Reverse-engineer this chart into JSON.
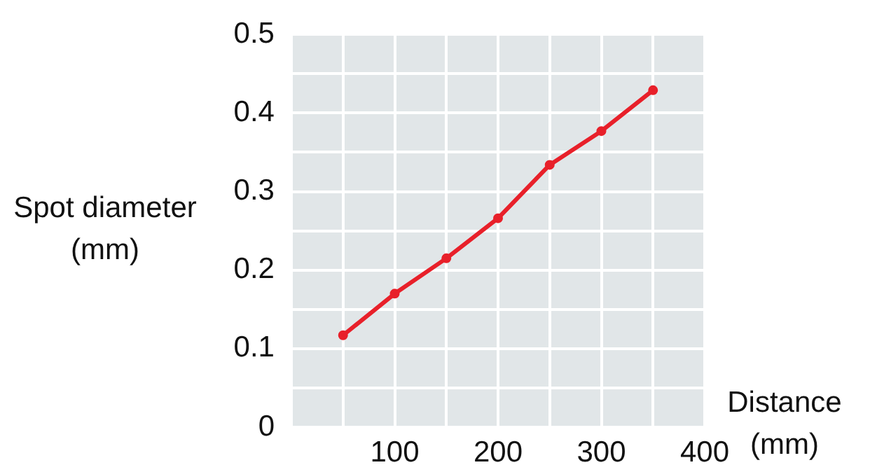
{
  "chart_data": {
    "type": "line",
    "xlabel": "Distance\n(mm)",
    "ylabel": "Spot diameter\n(mm)",
    "x": [
      50,
      100,
      150,
      200,
      250,
      300,
      350
    ],
    "series": [
      {
        "color": "#e8202a",
        "values": [
          0.117,
          0.17,
          0.215,
          0.266,
          0.334,
          0.377,
          0.429
        ]
      }
    ],
    "xlim": [
      0,
      400
    ],
    "ylim": [
      0,
      0.5
    ],
    "xticks": [
      {
        "value": 0,
        "label": null
      },
      {
        "value": 50,
        "label": null
      },
      100,
      {
        "value": 150,
        "label": null
      },
      200,
      {
        "value": 250,
        "label": null
      },
      300,
      {
        "value": 350,
        "label": null
      },
      400
    ],
    "yticks": [
      0,
      {
        "value": 0.05,
        "label": null
      },
      0.1,
      {
        "value": 0.15,
        "label": null
      },
      0.2,
      {
        "value": 0.25,
        "label": null
      },
      0.3,
      {
        "value": 0.35,
        "label": null
      },
      0.4,
      {
        "value": 0.45,
        "label": null
      },
      0.5
    ],
    "grid": true,
    "legend": false,
    "marker": "circle",
    "line_style": "solid"
  }
}
